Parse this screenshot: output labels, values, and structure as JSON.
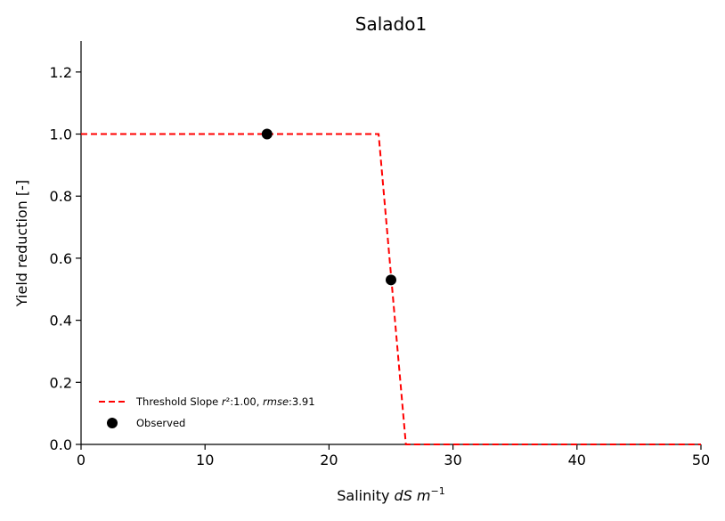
{
  "chart_data": {
    "type": "line",
    "title": "Salado1",
    "xlabel_prefix": "Salinity ",
    "xlabel_math": "dS m",
    "xlabel_exp": "−1",
    "ylabel": "Yield reduction [-]",
    "xlim": [
      0,
      50
    ],
    "ylim": [
      0,
      1.3
    ],
    "xticks": [
      0,
      10,
      20,
      30,
      40,
      50
    ],
    "xtick_labels": [
      "0",
      "10",
      "20",
      "30",
      "40",
      "50"
    ],
    "yticks": [
      0.0,
      0.2,
      0.4,
      0.6,
      0.8,
      1.0,
      1.2
    ],
    "ytick_labels": [
      "0.0",
      "0.2",
      "0.4",
      "0.6",
      "0.8",
      "1.0",
      "1.2"
    ],
    "grid": false,
    "legend_position": "lower-left",
    "series": [
      {
        "name": "Threshold Slope r²:1.00, rmse:3.91",
        "style": "dashed-line",
        "color": "#ff0000",
        "x": [
          0,
          24,
          26.2,
          50
        ],
        "y": [
          1.0,
          1.0,
          0.0,
          0.0
        ]
      },
      {
        "name": "Observed",
        "style": "scatter",
        "color": "#000000",
        "x": [
          15,
          25
        ],
        "y": [
          1.0,
          0.53
        ]
      }
    ],
    "legend": {
      "fit_prefix": "Threshold Slope ",
      "fit_r": "r",
      "fit_r2_value": "²:1.00, ",
      "fit_rmse": "rmse",
      "fit_rmse_value": ":3.91",
      "observed": "Observed"
    }
  }
}
